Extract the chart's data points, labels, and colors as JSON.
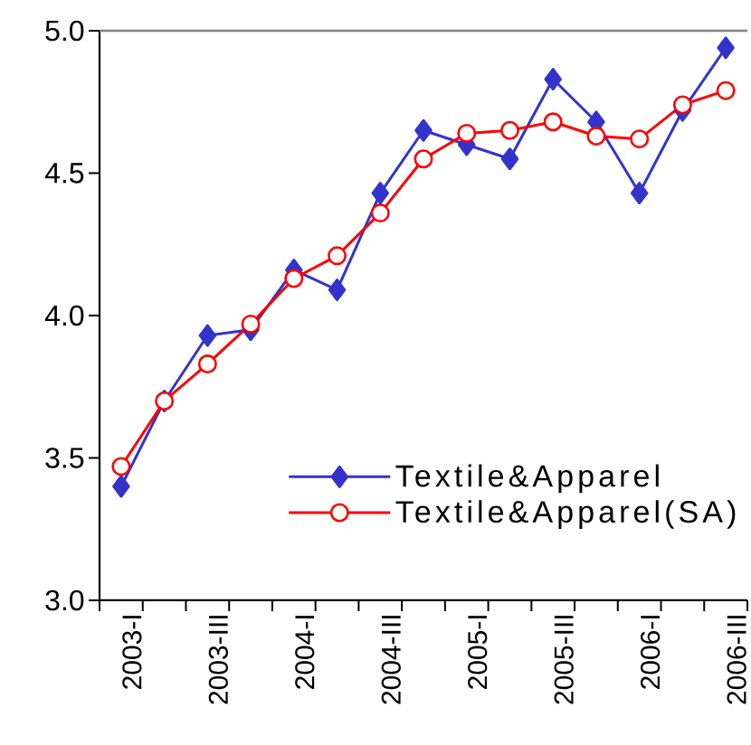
{
  "chart_data": {
    "type": "line",
    "categories": [
      "2003-I",
      null,
      "2003-III",
      null,
      "2004-I",
      null,
      "2004-III",
      null,
      "2005-I",
      null,
      "2005-III",
      null,
      "2006-I",
      null,
      "2006-III"
    ],
    "series": [
      {
        "name": "Textile&Apparel",
        "color": "#3333cc",
        "marker": "diamond",
        "values": [
          3.4,
          3.7,
          3.93,
          3.95,
          4.16,
          4.09,
          4.43,
          4.65,
          4.6,
          4.55,
          4.83,
          4.68,
          4.43,
          4.72,
          4.94
        ]
      },
      {
        "name": "Textile&Apparel(SA)",
        "color": "#ff0000",
        "marker": "circle",
        "values": [
          3.47,
          3.7,
          3.83,
          3.97,
          4.13,
          4.21,
          4.36,
          4.55,
          4.64,
          4.65,
          4.68,
          4.63,
          4.62,
          4.74,
          4.79
        ]
      }
    ],
    "ylim": [
      3,
      5
    ],
    "yticks": [
      {
        "value": 3,
        "label": "3.0"
      },
      {
        "value": 3.5,
        "label": "3.5"
      },
      {
        "value": 4,
        "label": "4.0"
      },
      {
        "value": 4.5,
        "label": "4.5"
      },
      {
        "value": 5,
        "label": "5.0"
      }
    ],
    "legend": "bottom right"
  }
}
